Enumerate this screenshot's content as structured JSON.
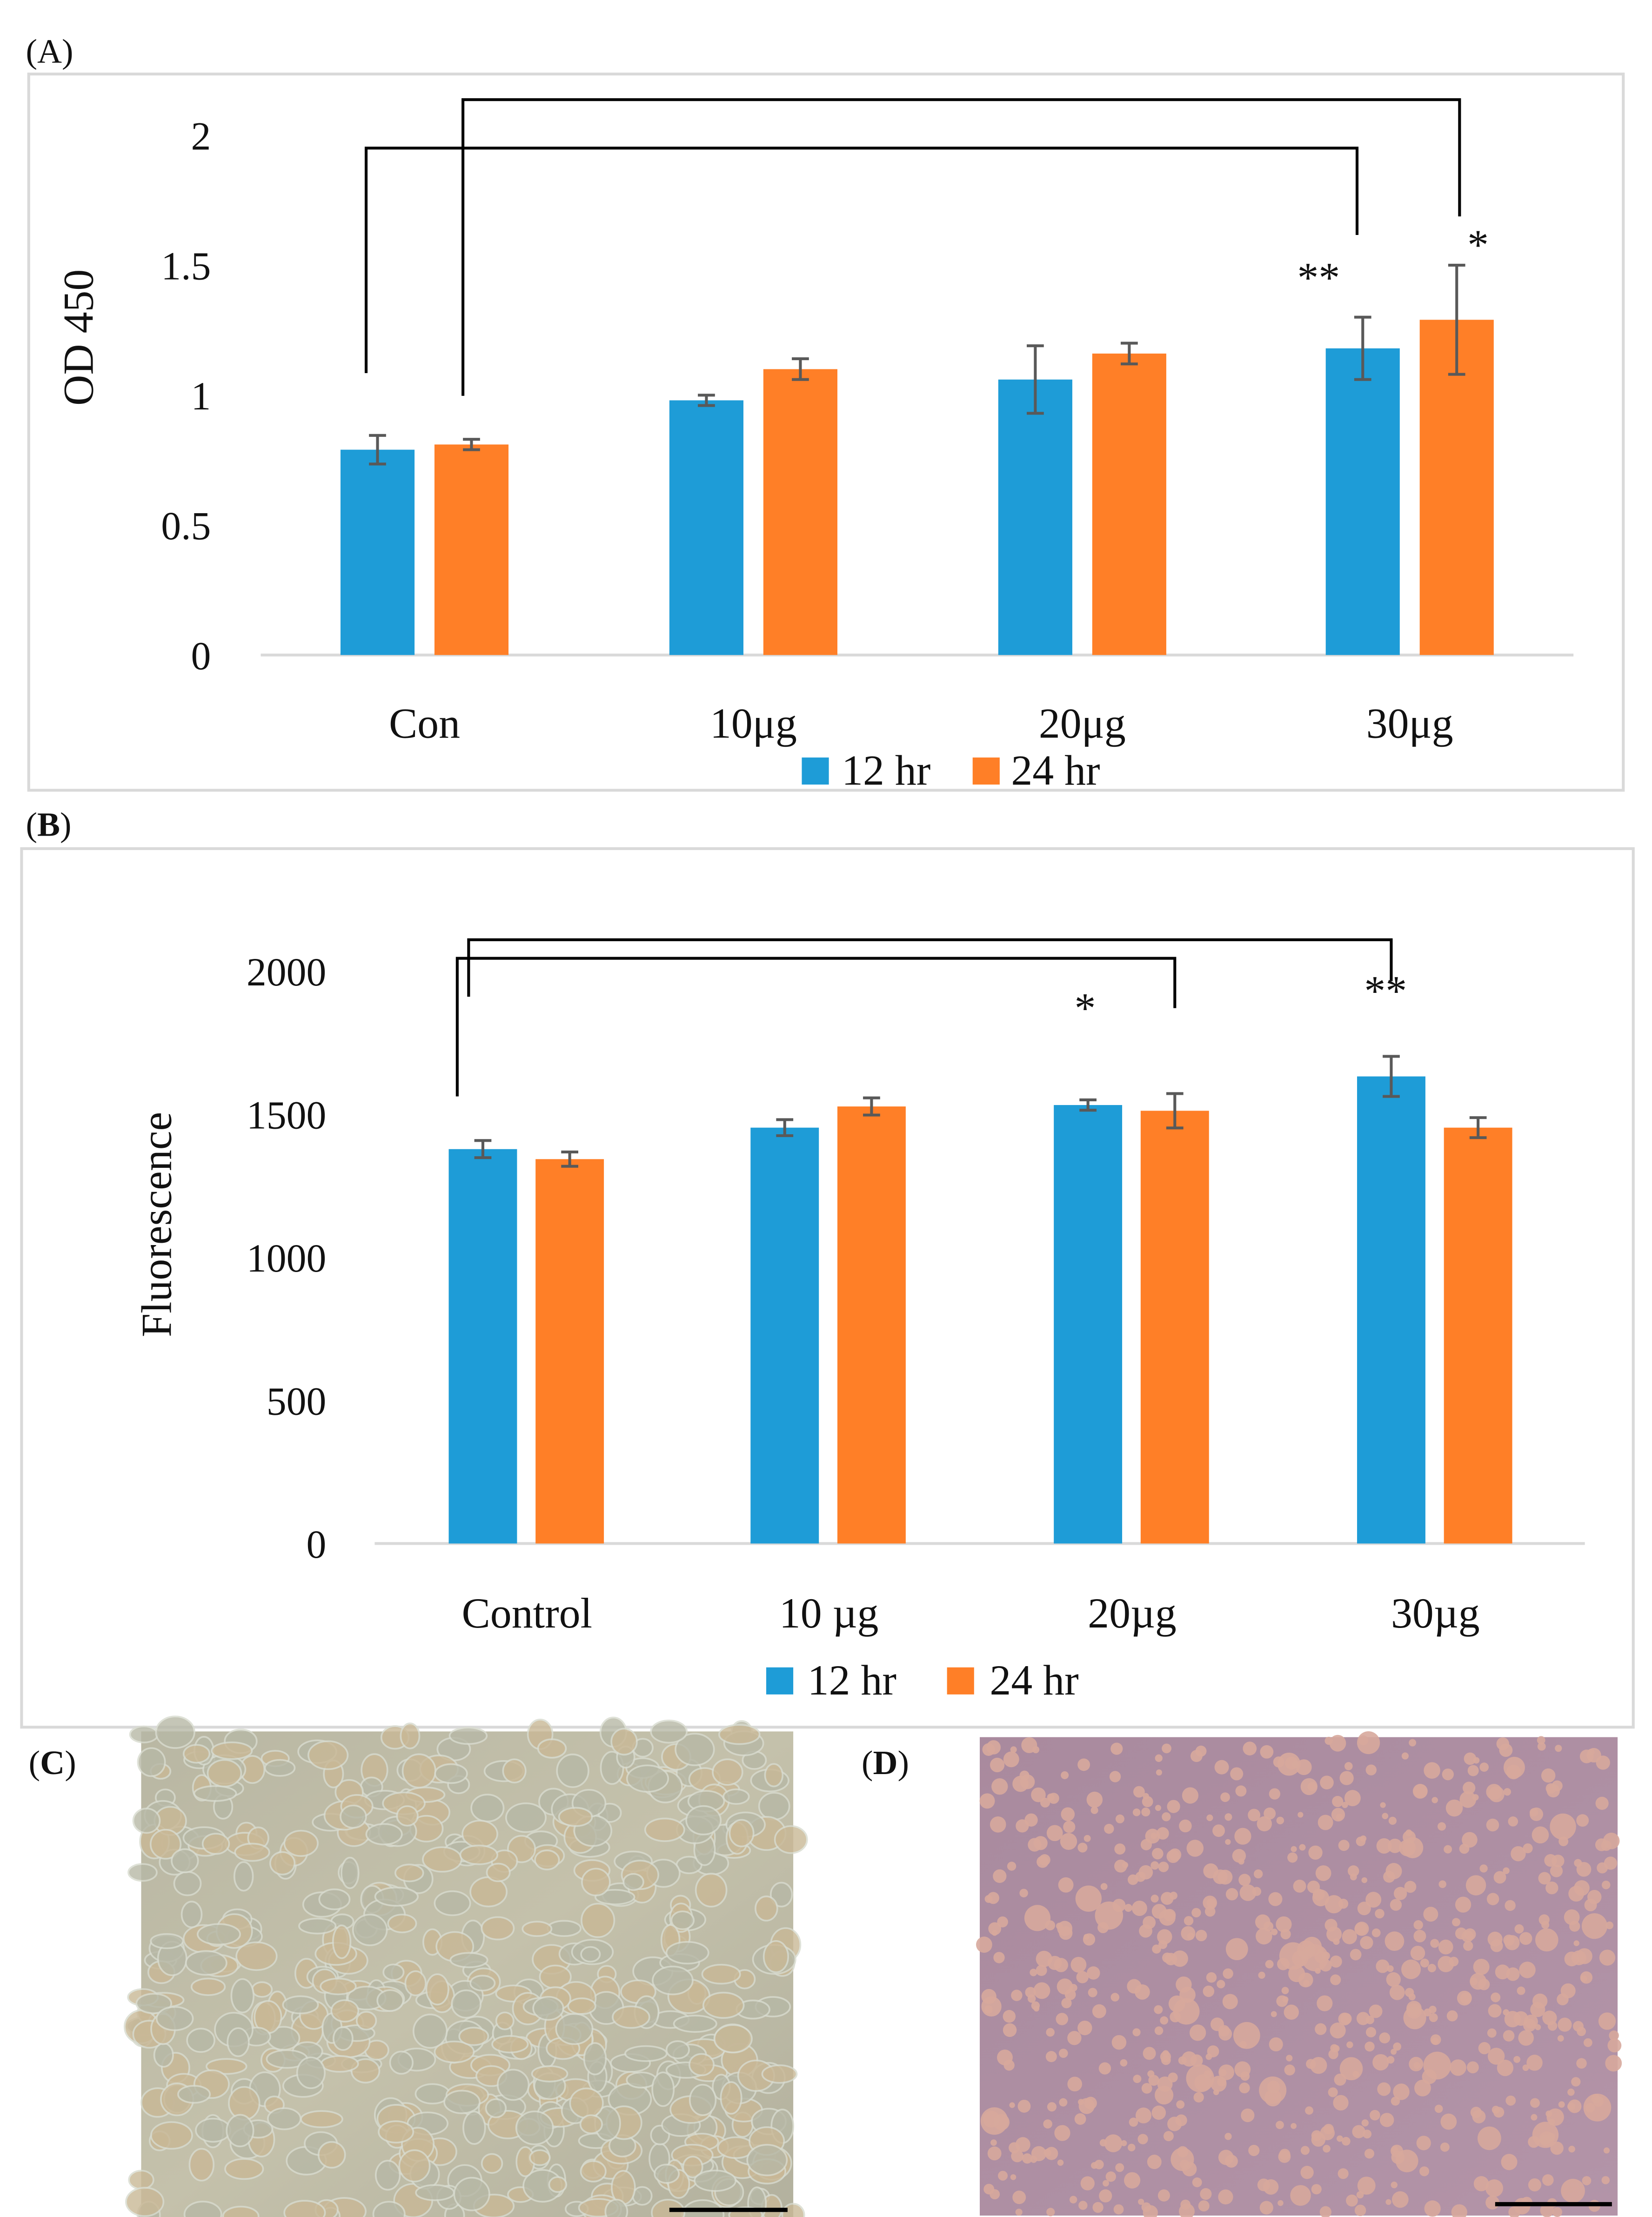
{
  "panel_labels": {
    "a": "(A)",
    "b_open": "(",
    "b": "B",
    "b_close": ")",
    "c_open": "(",
    "c": "C",
    "c_close": ")",
    "d_open": "(",
    "d": "D",
    "d_close": ")"
  },
  "colors": {
    "series_12hr": "#1E9CD7",
    "series_24hr": "#FF7F27",
    "error_bar": "#595959",
    "axis": "#D9D9D9",
    "frame": "#D9D9D9"
  },
  "chart_data": [
    {
      "type": "bar",
      "title": "",
      "xlabel": "",
      "ylabel": "OD 450",
      "ylim": [
        0,
        2
      ],
      "yticks": [
        "0",
        "0.5",
        "1",
        "1.5",
        "2"
      ],
      "ytick_values": [
        0,
        0.5,
        1,
        1.5,
        2
      ],
      "categories": [
        "Con",
        "10μg",
        "20μg",
        "30μg"
      ],
      "legend_position": "bottom",
      "grid": false,
      "series": [
        {
          "name": "12 hr",
          "values": [
            0.79,
            0.98,
            1.06,
            1.18
          ],
          "errors": [
            0.055,
            0.02,
            0.13,
            0.12
          ]
        },
        {
          "name": "24 hr",
          "values": [
            0.81,
            1.1,
            1.16,
            1.29
          ],
          "errors": [
            0.02,
            0.04,
            0.04,
            0.21
          ]
        }
      ],
      "annotations": [
        {
          "from_category": 0,
          "from_series": 0,
          "to_category": 3,
          "to_series": 0,
          "label": "**"
        },
        {
          "from_category": 0,
          "from_series": 1,
          "to_category": 3,
          "to_series": 1,
          "label": "*"
        }
      ]
    },
    {
      "type": "bar",
      "title": "",
      "xlabel": "",
      "ylabel": "Fluorescence",
      "ylim": [
        0,
        2000
      ],
      "yticks": [
        "0",
        "500",
        "1000",
        "1500",
        "2000"
      ],
      "ytick_values": [
        0,
        500,
        1000,
        1500,
        2000
      ],
      "categories": [
        "Control",
        "10 µg",
        "20µg",
        "30µg"
      ],
      "legend_position": "bottom",
      "grid": false,
      "series": [
        {
          "name": "12 hr",
          "values": [
            1378,
            1453,
            1532,
            1632
          ],
          "errors": [
            30,
            28,
            18,
            70
          ]
        },
        {
          "name": "24 hr",
          "values": [
            1343,
            1527,
            1512,
            1453
          ],
          "errors": [
            25,
            30,
            60,
            35
          ]
        }
      ],
      "annotations": [
        {
          "from_category": 0,
          "to_category": 2,
          "label": "*"
        },
        {
          "from_category": 0,
          "to_category": 3,
          "label": "**"
        }
      ]
    }
  ]
}
